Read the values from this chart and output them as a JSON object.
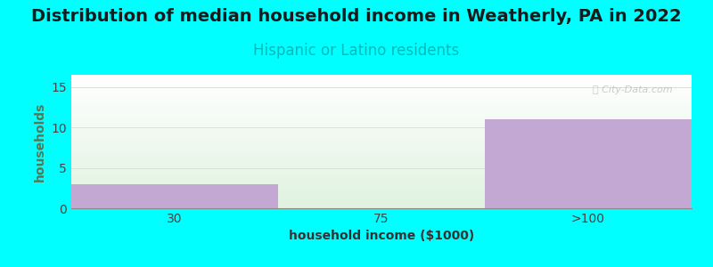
{
  "title": "Distribution of median household income in Weatherly, PA in 2022",
  "subtitle": "Hispanic or Latino residents",
  "subtitle_color": "#00BBBB",
  "xlabel": "household income ($1000)",
  "ylabel": "households",
  "ylabel_color": "#557755",
  "categories": [
    "30",
    "75",
    ">100"
  ],
  "values": [
    3,
    0,
    11
  ],
  "bar_color": "#C4A8D4",
  "bar_alpha": 1.0,
  "ylim": [
    0,
    16.5
  ],
  "yticks": [
    0,
    5,
    10,
    15
  ],
  "background_color": "#00FFFF",
  "title_fontsize": 14,
  "subtitle_fontsize": 12,
  "axis_label_fontsize": 10,
  "tick_fontsize": 10,
  "watermark": "Ⓜ City-Data.com"
}
